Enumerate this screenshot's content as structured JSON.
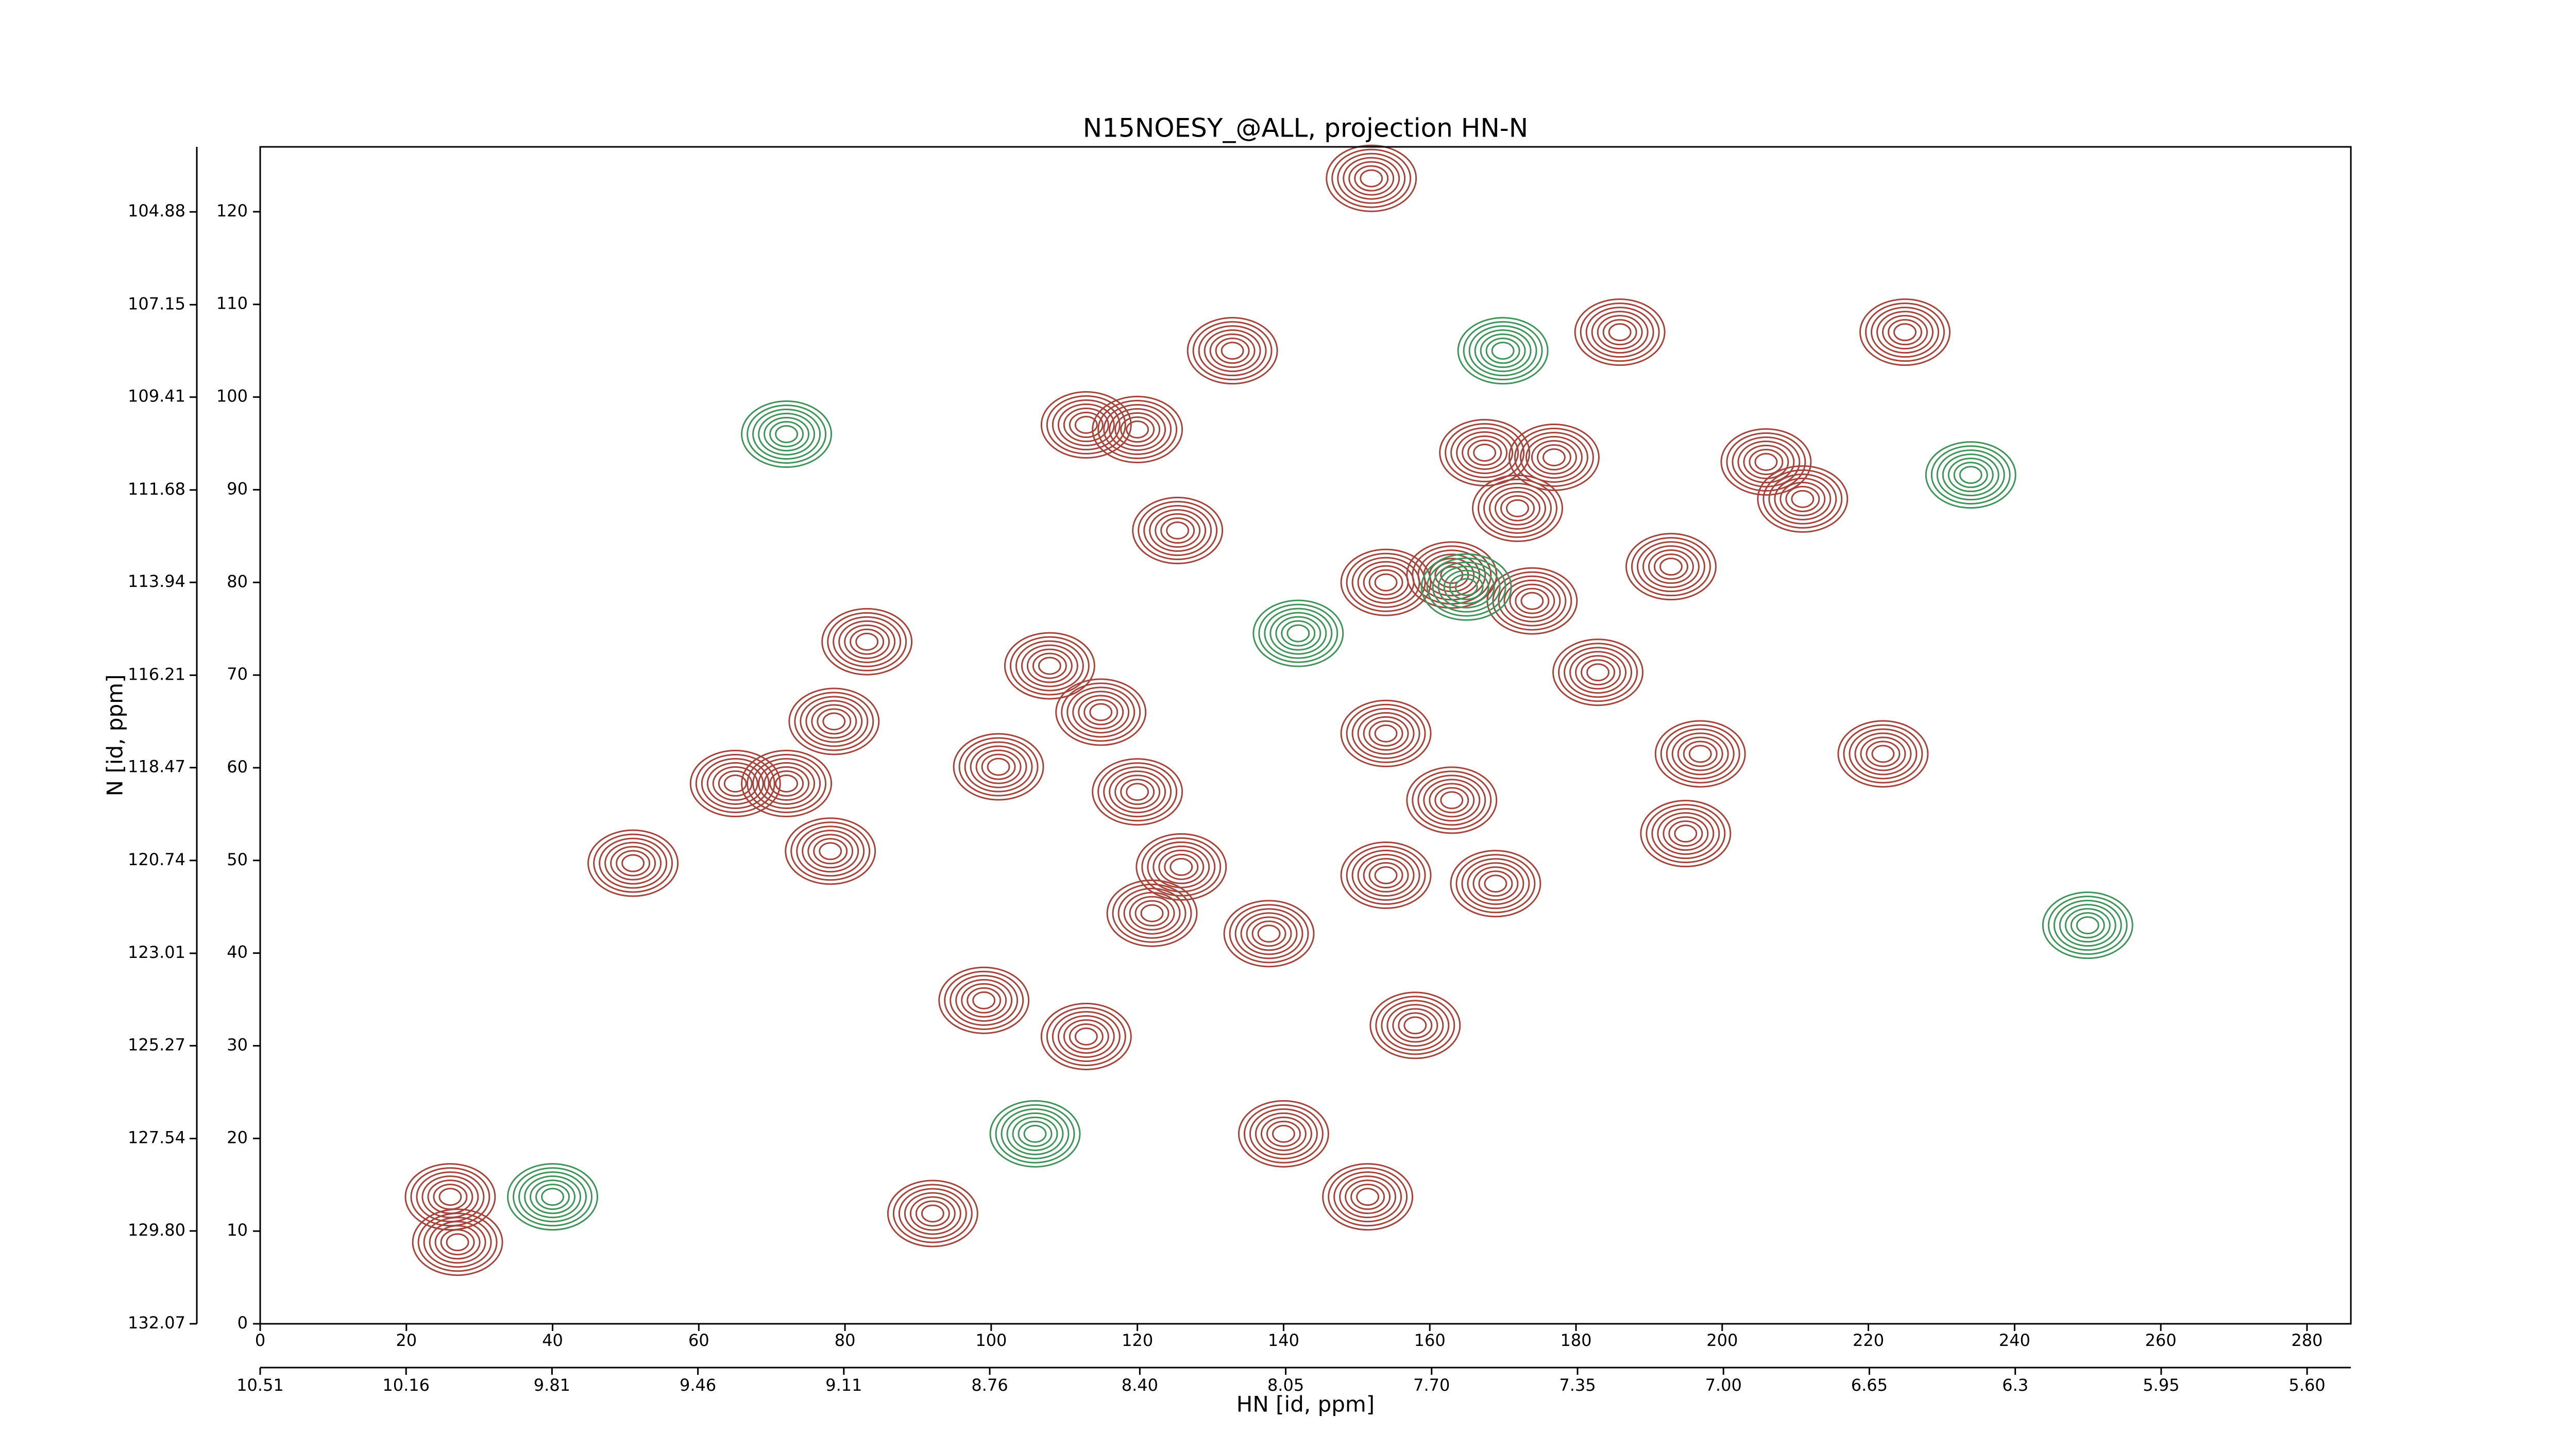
{
  "chart_data": {
    "type": "contour",
    "title": "N15NOESY_@ALL, projection HN-N",
    "xlabel": "HN [id, ppm]",
    "ylabel": "N [id, ppm]",
    "xlim": [
      0,
      286
    ],
    "ylim": [
      0,
      127
    ],
    "xticks": [
      0,
      20,
      40,
      60,
      80,
      100,
      120,
      140,
      160,
      180,
      200,
      220,
      240,
      260,
      280
    ],
    "yticks": [
      0,
      10,
      20,
      30,
      40,
      50,
      60,
      70,
      80,
      90,
      100,
      110,
      120
    ],
    "x2lim": [
      10.51,
      5.495
    ],
    "x2ticks": [
      10.51,
      10.16,
      9.81,
      9.46,
      9.11,
      8.76,
      {
        "value": 8.4,
        "label": "8.40"
      },
      8.05,
      {
        "value": 7.7,
        "label": "7.70"
      },
      7.35,
      {
        "value": 7,
        "label": "7.00"
      },
      6.65,
      6.3,
      5.95,
      {
        "value": 5.6,
        "label": "5.60"
      }
    ],
    "y2lim": [
      132.07,
      103.29
    ],
    "y2ticks": [
      132.07,
      {
        "value": 129.8,
        "label": "129.80"
      },
      127.54,
      125.27,
      123.01,
      120.74,
      118.47,
      116.21,
      113.94,
      111.68,
      109.41,
      107.15,
      104.88
    ],
    "series": [
      {
        "color": "#a5443b",
        "x": [
          152,
          186,
          225,
          133,
          113,
          120,
          167.5,
          177,
          206,
          211,
          172,
          125.5,
          193,
          163,
          174,
          154,
          83,
          108,
          183,
          78.5,
          115,
          101,
          154,
          197,
          222,
          65,
          72,
          163,
          120,
          78,
          51,
          195,
          126,
          154,
          169,
          122,
          138,
          99,
          158,
          113,
          140,
          92,
          26,
          27,
          151.5
        ],
        "y": [
          123.6,
          107,
          107,
          105,
          97,
          96.5,
          94,
          93.5,
          93,
          89,
          88,
          85.6,
          81.7,
          80.8,
          78,
          80,
          73.6,
          71,
          70.3,
          65,
          66,
          60.1,
          63.7,
          61.5,
          61.5,
          58.3,
          58.3,
          56.5,
          57.4,
          51,
          49.7,
          52.9,
          49.3,
          48.4,
          47.5,
          44.3,
          42.1,
          34.9,
          32.2,
          31,
          20.5,
          11.9,
          13.7,
          8.8,
          13.7
        ]
      },
      {
        "color": "#3e9459",
        "x": [
          165,
          142,
          170,
          234,
          250,
          106,
          40,
          72
        ],
        "y": [
          79.5,
          74.5,
          105,
          91.6,
          43,
          20.5,
          13.7,
          96
        ]
      }
    ]
  }
}
